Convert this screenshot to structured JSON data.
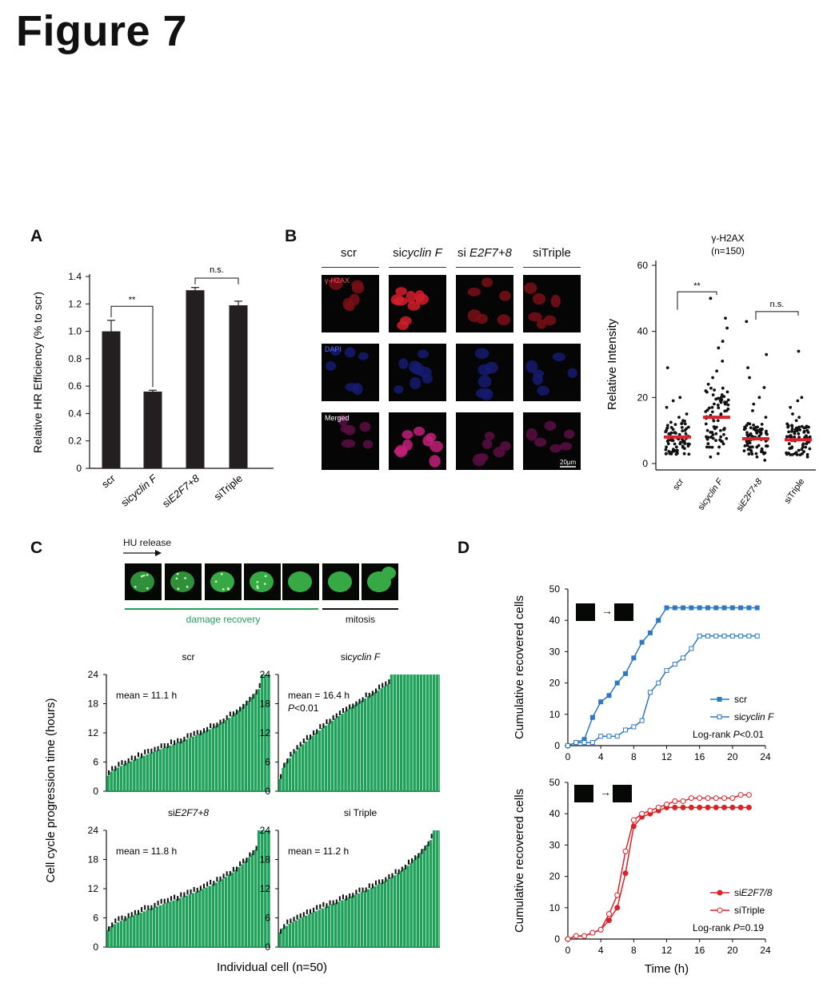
{
  "figure_title": "Figure 7",
  "panels": {
    "A": {
      "letter": "A"
    },
    "B": {
      "letter": "B"
    },
    "C": {
      "letter": "C"
    },
    "D": {
      "letter": "D"
    }
  },
  "panelB_images": {
    "columns": [
      "scr",
      "sicyclin F",
      "siE2F7+8",
      "siTriple"
    ],
    "rows": [
      "γ-H2AX",
      "DAPI",
      "Merged"
    ],
    "scale_bar": "20μm"
  },
  "panelC_header": {
    "arrow_label": "HU release",
    "damage_label": "damage recovery",
    "mitosis_label": "mitosis"
  },
  "chart_data": [
    {
      "type": "bar",
      "panel": "A",
      "categories": [
        "scr",
        "sicyclin F",
        "siE2F7+8",
        "siTriple"
      ],
      "values": [
        1.0,
        0.56,
        1.3,
        1.19
      ],
      "errors": [
        0.08,
        0.01,
        0.02,
        0.03
      ],
      "ylabel": "Relative HR Efficiency (% to scr)",
      "ylim": [
        0,
        1.4
      ],
      "yticks": [
        "0",
        "0.2",
        "0.4",
        "0.6",
        "0.8",
        "1.0",
        "1.2",
        "1.4"
      ],
      "annotations": [
        {
          "between": [
            "scr",
            "sicyclin F"
          ],
          "text": "**"
        },
        {
          "between": [
            "siE2F7+8",
            "siTriple"
          ],
          "text": "n.s."
        }
      ]
    },
    {
      "type": "scatter",
      "panel": "B",
      "title": "γ-H2AX",
      "subtitle": "(n=150)",
      "categories": [
        "scr",
        "sicyclin F",
        "siE2F7+8",
        "siTriple"
      ],
      "means": [
        8.0,
        14.0,
        7.5,
        7.2
      ],
      "ylabel": "Relative Intensity",
      "ylim": [
        0,
        60
      ],
      "yticks": [
        "0",
        "20",
        "40",
        "60"
      ],
      "points": [
        [
          3,
          4,
          5,
          5,
          6,
          6,
          7,
          7,
          8,
          8,
          8,
          9,
          9,
          10,
          10,
          11,
          12,
          13,
          14,
          15,
          17,
          19,
          20,
          29
        ],
        [
          2,
          3,
          5,
          6,
          8,
          9,
          10,
          11,
          12,
          13,
          14,
          15,
          16,
          17,
          18,
          19,
          20,
          22,
          24,
          26,
          28,
          31,
          35,
          37,
          41,
          44,
          50
        ],
        [
          1,
          2,
          3,
          4,
          5,
          5,
          6,
          7,
          7,
          8,
          9,
          10,
          11,
          12,
          14,
          16,
          18,
          20,
          23,
          26,
          29,
          33,
          43
        ],
        [
          2,
          3,
          4,
          5,
          6,
          6,
          7,
          7,
          8,
          8,
          9,
          10,
          11,
          12,
          13,
          14,
          15,
          17,
          19,
          20,
          34
        ]
      ],
      "annotations": [
        {
          "between": [
            "scr",
            "sicyclin F"
          ],
          "text": "**"
        },
        {
          "between": [
            "siE2F7+8",
            "siTriple"
          ],
          "text": "n.s."
        }
      ]
    },
    {
      "type": "bar",
      "panel": "C",
      "shared_ylabel": "Cell cycle progression time (hours)",
      "shared_xlabel": "Individual cell (n=50)",
      "subplots": [
        {
          "title": "scr",
          "annotation": "mean = 11.1 h",
          "sub_annotation": "",
          "ylim": [
            0,
            24
          ],
          "yticks": [
            "0",
            "6",
            "12",
            "18",
            "24"
          ],
          "range": [
            3.2,
            21.0
          ],
          "capped": 3
        },
        {
          "title": "sicyclin F",
          "annotation": "mean = 16.4 h",
          "sub_annotation": "P<0.01",
          "ylim": [
            0,
            24
          ],
          "yticks": [
            "0",
            "6",
            "12",
            "18",
            "24"
          ],
          "range": [
            2.5,
            22.0
          ],
          "capped": 16
        },
        {
          "title": "siE2F7+8",
          "annotation": "mean = 11.8 h",
          "sub_annotation": "",
          "ylim": [
            0,
            24
          ],
          "yticks": [
            "0",
            "6",
            "12",
            "18",
            "24"
          ],
          "range": [
            3.5,
            20.0
          ],
          "capped": 4
        },
        {
          "title": "si Triple",
          "annotation": "mean = 11.2 h",
          "sub_annotation": "",
          "ylim": [
            0,
            24
          ],
          "yticks": [
            "0",
            "6",
            "12",
            "18",
            "24"
          ],
          "range": [
            3.0,
            22.0
          ],
          "capped": 3
        }
      ]
    },
    {
      "type": "line",
      "panel": "D-top",
      "ylabel": "Cumulative recovered cells",
      "xlim": [
        0,
        24
      ],
      "ylim": [
        0,
        50
      ],
      "xticks": [
        "0",
        "4",
        "8",
        "12",
        "16",
        "20",
        "24"
      ],
      "yticks": [
        "0",
        "10",
        "20",
        "30",
        "40",
        "50"
      ],
      "annotation": "Log-rank P<0.01",
      "series": [
        {
          "name": "scr",
          "color": "#2f79c2",
          "marker": "filled-square",
          "x": [
            0,
            1,
            2,
            3,
            4,
            5,
            6,
            7,
            8,
            9,
            10,
            11,
            12,
            13,
            14,
            15,
            16,
            17,
            18,
            19,
            20,
            21,
            22,
            23
          ],
          "y": [
            0,
            1,
            2,
            9,
            14,
            16,
            20,
            23,
            28,
            33,
            36,
            40,
            44,
            44,
            44,
            44,
            44,
            44,
            44,
            44,
            44,
            44,
            44,
            44
          ]
        },
        {
          "name": "sicyclin F",
          "color": "#2f79c2",
          "marker": "open-square",
          "x": [
            0,
            1,
            2,
            3,
            4,
            5,
            6,
            7,
            8,
            9,
            10,
            11,
            12,
            13,
            14,
            15,
            16,
            17,
            18,
            19,
            20,
            21,
            22,
            23
          ],
          "y": [
            0,
            1,
            1,
            1,
            3,
            3,
            3,
            5,
            6,
            8,
            17,
            20,
            24,
            26,
            28,
            31,
            35,
            35,
            35,
            35,
            35,
            35,
            35,
            35
          ]
        }
      ]
    },
    {
      "type": "line",
      "panel": "D-bottom",
      "ylabel": "Cumulative recovered cells",
      "xlabel": "Time (h)",
      "xlim": [
        0,
        24
      ],
      "ylim": [
        0,
        50
      ],
      "xticks": [
        "0",
        "4",
        "8",
        "12",
        "16",
        "20",
        "24"
      ],
      "yticks": [
        "0",
        "10",
        "20",
        "30",
        "40",
        "50"
      ],
      "annotation": "Log-rank P=0.19",
      "series": [
        {
          "name": "siE2F7/8",
          "color": "#d9232b",
          "marker": "filled-circle",
          "x": [
            0,
            1,
            2,
            3,
            4,
            5,
            6,
            7,
            8,
            9,
            10,
            11,
            12,
            13,
            14,
            15,
            16,
            17,
            18,
            19,
            20,
            21,
            22
          ],
          "y": [
            0,
            1,
            1,
            2,
            3,
            6,
            10,
            21,
            36,
            39,
            40,
            41,
            42,
            42,
            42,
            42,
            42,
            42,
            42,
            42,
            42,
            42,
            42
          ]
        },
        {
          "name": "siTriple",
          "color": "#d9232b",
          "marker": "open-circle",
          "x": [
            0,
            1,
            2,
            3,
            4,
            5,
            6,
            7,
            8,
            9,
            10,
            11,
            12,
            13,
            14,
            15,
            16,
            17,
            18,
            19,
            20,
            21,
            22
          ],
          "y": [
            0,
            1,
            1,
            2,
            3,
            8,
            14,
            28,
            38,
            40,
            41,
            42,
            43,
            44,
            44,
            45,
            45,
            45,
            45,
            45,
            45,
            46,
            46
          ]
        }
      ]
    }
  ]
}
